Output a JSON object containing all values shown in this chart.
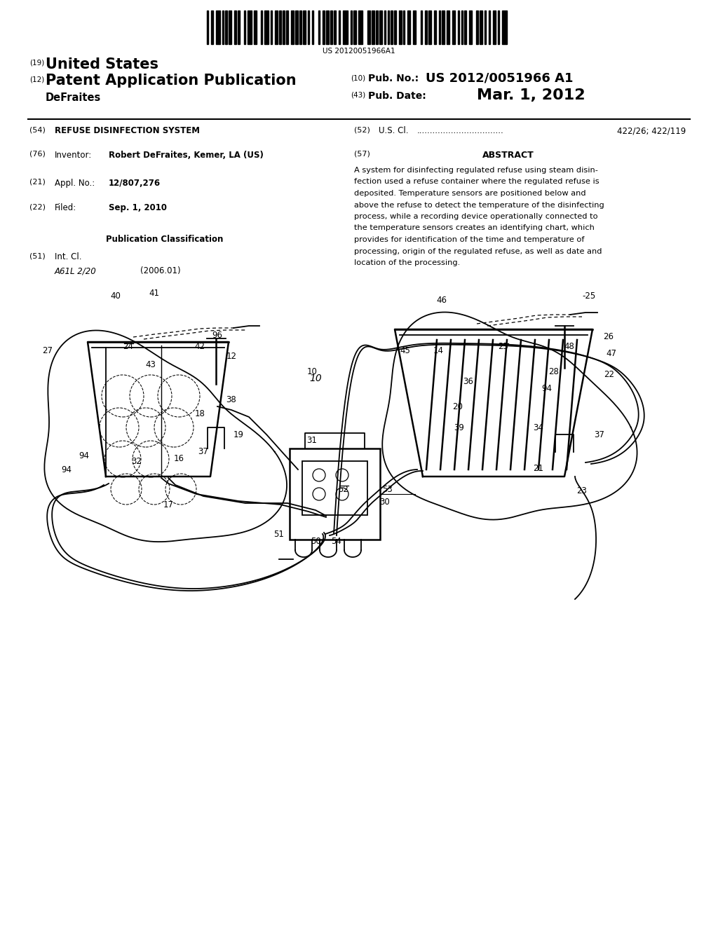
{
  "background_color": "#ffffff",
  "barcode_text": "US 20120051966A1",
  "country": "United States",
  "pub_title": "Patent Application Publication",
  "inventor_surname": "DeFraites",
  "pub_no_label": "Pub. No.:",
  "pub_no_value": "US 2012/0051966 A1",
  "pub_date_label": "Pub. Date:",
  "pub_date_value": "Mar. 1, 2012",
  "title_54": "REFUSE DISINFECTION SYSTEM",
  "us_cl_label": "U.S. Cl.",
  "us_cl_dots": ".................................",
  "us_cl_value": "422/26; 422/119",
  "inventor_label": "Inventor:",
  "inventor_value": "Robert DeFraites, Kemer, LA (US)",
  "abstract_title": "ABSTRACT",
  "abstract_lines": [
    "A system for disinfecting regulated refuse using steam disin-",
    "fection used a refuse container where the regulated refuse is",
    "deposited. Temperature sensors are positioned below and",
    "above the refuse to detect the temperature of the disinfecting",
    "process, while a recording device operationally connected to",
    "the temperature sensors creates an identifying chart, which",
    "provides for identification of the time and temperature of",
    "processing, origin of the regulated refuse, as well as date and",
    "location of the processing."
  ],
  "appl_no_value": "12/807,276",
  "filed_value": "Sep. 1, 2010",
  "pub_class_title": "Publication Classification",
  "int_cl_value": "A61L 2/20",
  "int_cl_year": "(2006.01)"
}
